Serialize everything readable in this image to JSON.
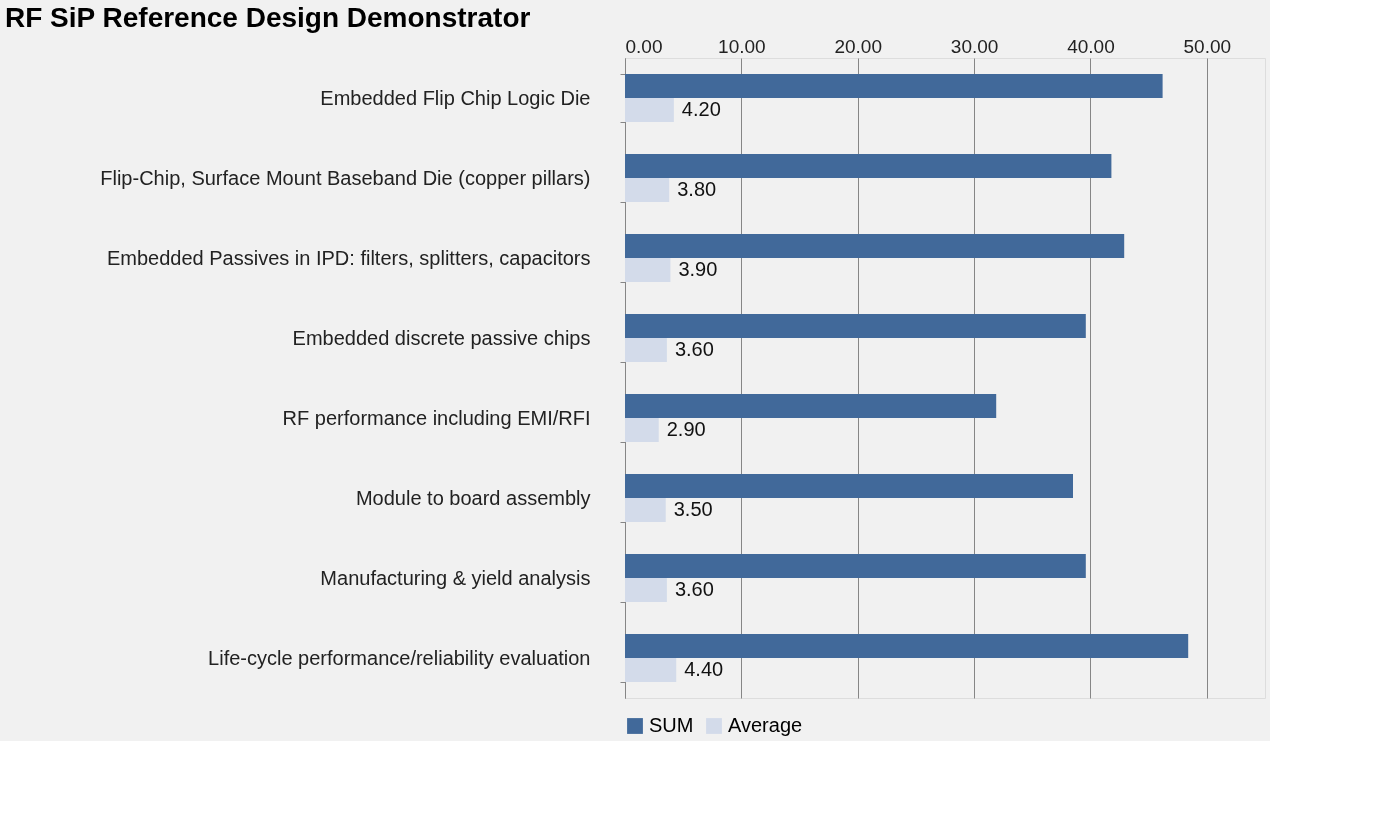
{
  "chart_data": {
    "type": "bar",
    "orientation": "horizontal",
    "title": "RF SiP Reference Design Demonstrator",
    "categories": [
      "Embedded Flip Chip Logic Die",
      "Flip-Chip, Surface Mount Baseband Die (copper pillars)",
      "Embedded Passives in IPD: filters, splitters, capacitors",
      "Embedded discrete passive chips",
      "RF performance including EMI/RFI",
      "Module to board assembly",
      "Manufacturing & yield analysis",
      "Life-cycle performance/reliability evaluation"
    ],
    "series": [
      {
        "name": "SUM",
        "color": "#41699a",
        "values": [
          46.2,
          41.8,
          42.9,
          39.6,
          31.9,
          38.5,
          39.6,
          48.4
        ]
      },
      {
        "name": "Average",
        "color": "#d3dbea",
        "values": [
          4.2,
          3.8,
          3.9,
          3.6,
          2.9,
          3.5,
          3.6,
          4.4
        ],
        "value_labels": [
          "4.20",
          "3.80",
          "3.90",
          "3.60",
          "2.90",
          "3.50",
          "3.60",
          "4.40"
        ]
      }
    ],
    "xlim": [
      0,
      55
    ],
    "xticks": [
      {
        "value": 0,
        "label": "0.00"
      },
      {
        "value": 10,
        "label": "10.00"
      },
      {
        "value": 20,
        "label": "20.00"
      },
      {
        "value": 30,
        "label": "30.00"
      },
      {
        "value": 40,
        "label": "40.00"
      },
      {
        "value": 50,
        "label": "50.00"
      }
    ],
    "grid": "x",
    "legend": "bottom"
  }
}
